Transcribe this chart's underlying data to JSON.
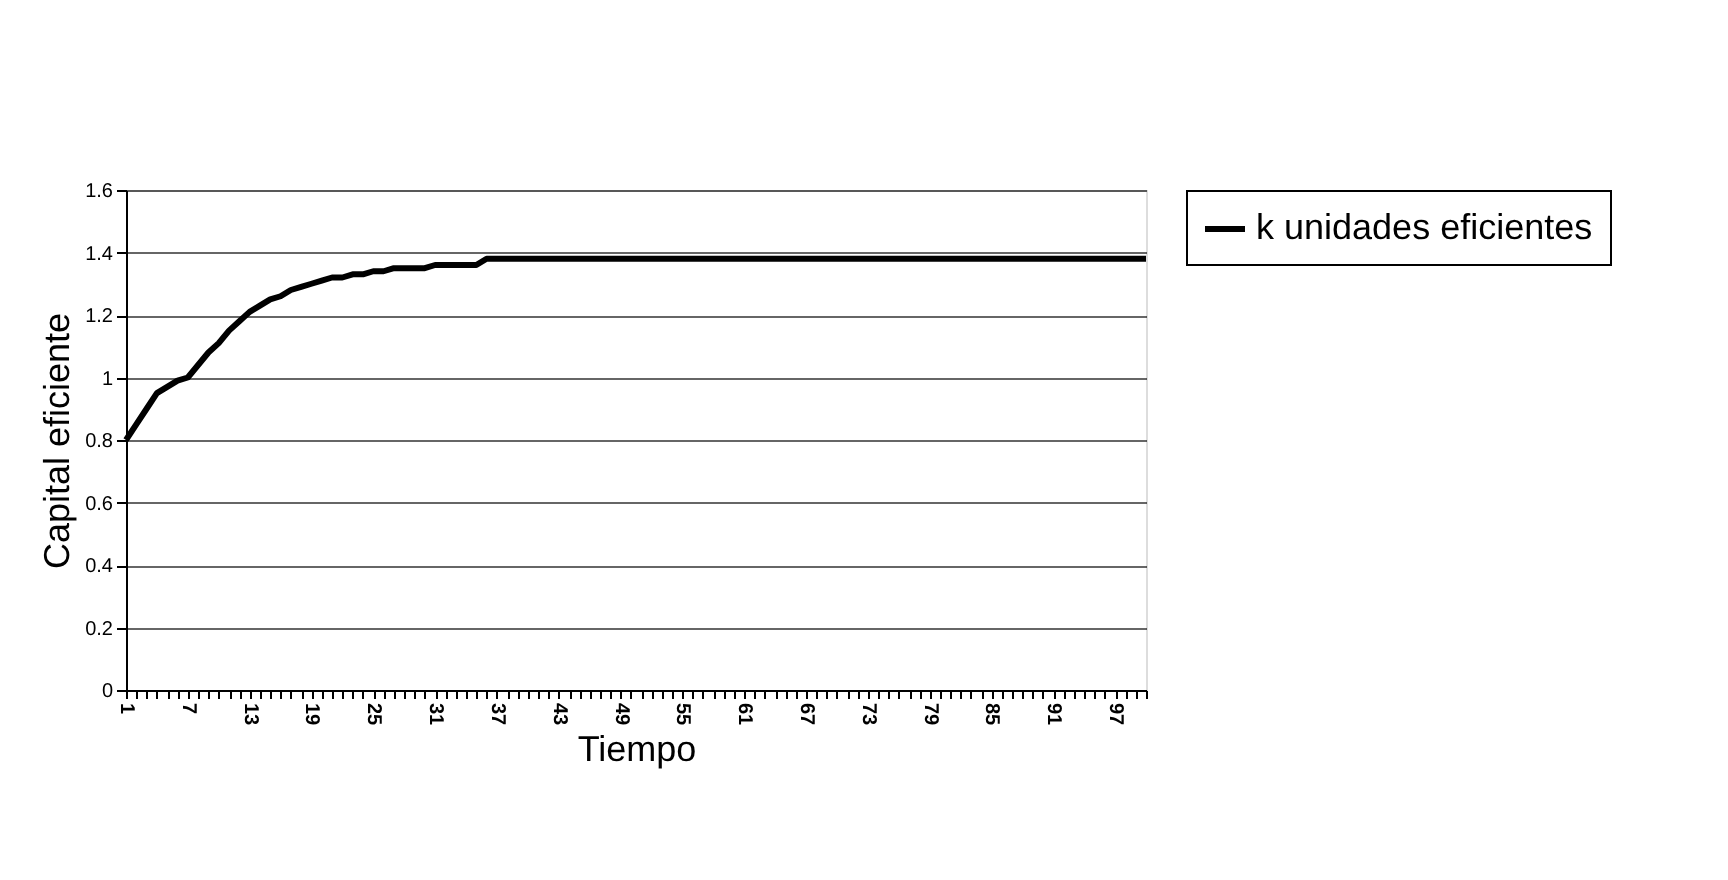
{
  "chart_data": {
    "type": "line",
    "xlabel": "Tiempo",
    "ylabel": "Capital eficiente",
    "categories": [
      "1",
      null,
      null,
      null,
      null,
      null,
      "7",
      null,
      null,
      null,
      null,
      null,
      "13",
      null,
      null,
      null,
      null,
      null,
      "19",
      null,
      null,
      null,
      null,
      null,
      "25",
      null,
      null,
      null,
      null,
      null,
      "31",
      null,
      null,
      null,
      null,
      null,
      "37",
      null,
      null,
      null,
      null,
      null,
      "43",
      null,
      null,
      null,
      null,
      null,
      "49",
      null,
      null,
      null,
      null,
      null,
      "55",
      null,
      null,
      null,
      null,
      null,
      "61",
      null,
      null,
      null,
      null,
      null,
      "67",
      null,
      null,
      null,
      null,
      null,
      "73",
      null,
      null,
      null,
      null,
      null,
      "79",
      null,
      null,
      null,
      null,
      null,
      "85",
      null,
      null,
      null,
      null,
      null,
      "91",
      null,
      null,
      null,
      null,
      null,
      "97",
      null,
      null,
      null
    ],
    "series": [
      {
        "name": "k unidades eficientes",
        "color": "#000000",
        "values": [
          0.8,
          0.85,
          0.9,
          0.95,
          0.97,
          0.99,
          1.0,
          1.04,
          1.08,
          1.11,
          1.15,
          1.18,
          1.21,
          1.23,
          1.25,
          1.26,
          1.28,
          1.29,
          1.3,
          1.31,
          1.32,
          1.32,
          1.33,
          1.33,
          1.34,
          1.34,
          1.35,
          1.35,
          1.35,
          1.35,
          1.36,
          1.36,
          1.36,
          1.36,
          1.36,
          1.38,
          1.38,
          1.38,
          1.38,
          1.38,
          1.38,
          1.38,
          1.38,
          1.38,
          1.38,
          1.38,
          1.38,
          1.38,
          1.38,
          1.38,
          1.38,
          1.38,
          1.38,
          1.38,
          1.38,
          1.38,
          1.38,
          1.38,
          1.38,
          1.38,
          1.38,
          1.38,
          1.38,
          1.38,
          1.38,
          1.38,
          1.38,
          1.38,
          1.38,
          1.38,
          1.38,
          1.38,
          1.38,
          1.38,
          1.38,
          1.38,
          1.38,
          1.38,
          1.38,
          1.38,
          1.38,
          1.38,
          1.38,
          1.38,
          1.38,
          1.38,
          1.38,
          1.38,
          1.38,
          1.38,
          1.38,
          1.38,
          1.38,
          1.38,
          1.38,
          1.38,
          1.38,
          1.38,
          1.38,
          1.38
        ]
      }
    ],
    "ylim": [
      0,
      1.6
    ],
    "yticks": [
      0,
      0.2,
      0.4,
      0.6,
      0.8,
      1,
      1.2,
      1.4,
      1.6
    ],
    "grid": "y",
    "legend": "right",
    "marker": "none",
    "line_style": "solid"
  }
}
